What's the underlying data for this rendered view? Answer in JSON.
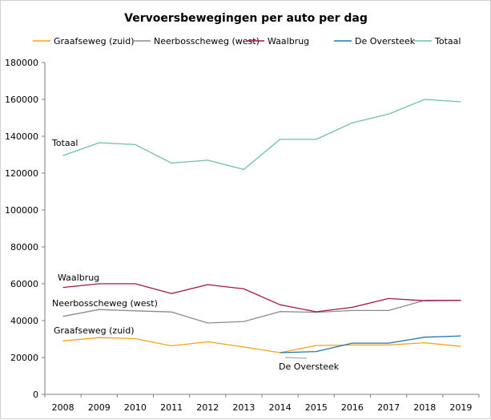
{
  "chart_data": {
    "type": "line",
    "title": "Vervoersbewegingen  per auto per dag",
    "xlabel": "",
    "ylabel": "",
    "x": [
      "2008",
      "2009",
      "2010",
      "2011",
      "2012",
      "2013",
      "2014",
      "2015",
      "2016",
      "2017",
      "2018",
      "2019"
    ],
    "ylim": [
      0,
      180000
    ],
    "yticks": [
      0,
      20000,
      40000,
      60000,
      80000,
      100000,
      120000,
      140000,
      160000,
      180000
    ],
    "grid": false,
    "legend_position": "top",
    "series": [
      {
        "name": "Graafseweg (zuid)",
        "color": "#f5a31a",
        "values": [
          29000,
          30800,
          30200,
          26300,
          28500,
          25700,
          22600,
          26500,
          26800,
          26800,
          28000,
          26000
        ]
      },
      {
        "name": "Neerbosscheweg (west)",
        "color": "#8c8c8c",
        "values": [
          42300,
          46000,
          45300,
          44700,
          38700,
          39500,
          44900,
          44500,
          45500,
          45500,
          51000,
          51000
        ]
      },
      {
        "name": "Waalbrug",
        "color": "#a3183c",
        "values": [
          58000,
          60000,
          60000,
          54700,
          59500,
          57200,
          48600,
          44800,
          47200,
          52000,
          50800,
          51000
        ]
      },
      {
        "name": "De Oversteek",
        "color": "#1f77b4",
        "values": [
          null,
          null,
          null,
          null,
          null,
          null,
          22600,
          23200,
          27800,
          27800,
          31000,
          31700
        ]
      },
      {
        "name": "Totaal",
        "color": "#6fbfa6",
        "values": [
          129500,
          136500,
          135500,
          125500,
          127000,
          122000,
          138300,
          138300,
          147300,
          152000,
          160000,
          158700
        ]
      }
    ],
    "annotations": [
      {
        "text": "Totaal",
        "series": "Totaal"
      },
      {
        "text": "Waalbrug",
        "series": "Waalbrug"
      },
      {
        "text": "Neerbosscheweg (west)",
        "series": "Neerbosscheweg (west)"
      },
      {
        "text": "Graafseweg (zuid)",
        "series": "Graafseweg (zuid)"
      },
      {
        "text": "De Oversteek",
        "series": "De Oversteek"
      }
    ]
  }
}
